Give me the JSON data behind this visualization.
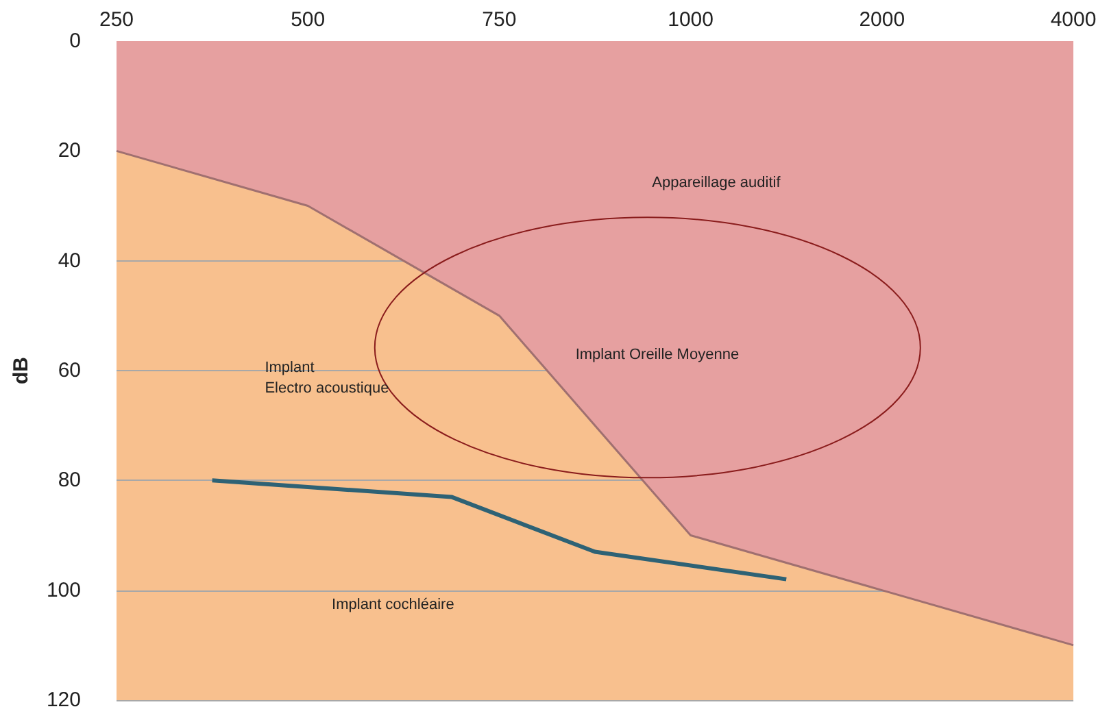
{
  "chart_data": {
    "type": "area",
    "ylabel": "dB",
    "categories": [
      "250",
      null,
      null,
      null,
      "500",
      null,
      null,
      null,
      "750",
      null,
      null,
      null,
      "1000",
      null,
      null,
      null,
      "2000",
      null,
      null,
      null,
      "4000"
    ],
    "series": [
      {
        "color": "#e6a0a0",
        "values": [
          20,
          null,
          null,
          null,
          30,
          null,
          null,
          null,
          50,
          null,
          null,
          null,
          90,
          null,
          null,
          null,
          100,
          null,
          null,
          null,
          110
        ]
      },
      {
        "color": "#f8c08e",
        "values": [
          100,
          null,
          null,
          null,
          90,
          null,
          null,
          null,
          70,
          null,
          null,
          null,
          30,
          null,
          null,
          null,
          20,
          null,
          null,
          null,
          10
        ]
      },
      {
        "type": "line",
        "color": "#2e6275",
        "values": [
          null,
          null,
          80,
          null,
          null,
          null,
          null,
          83,
          null,
          null,
          93,
          null,
          null,
          null,
          98,
          null,
          null,
          null,
          null,
          null,
          null
        ]
      }
    ],
    "ylim": [
      120,
      0
    ],
    "yticks": [
      0,
      20,
      40,
      60,
      80,
      100,
      120
    ],
    "grid": "y",
    "marker": "none",
    "stacked": true,
    "annotations": [
      "Appareillage auditif",
      "Implant Oreille Moyenne",
      "Implant\nElectro acoustique",
      "Implant cochléaire"
    ]
  }
}
